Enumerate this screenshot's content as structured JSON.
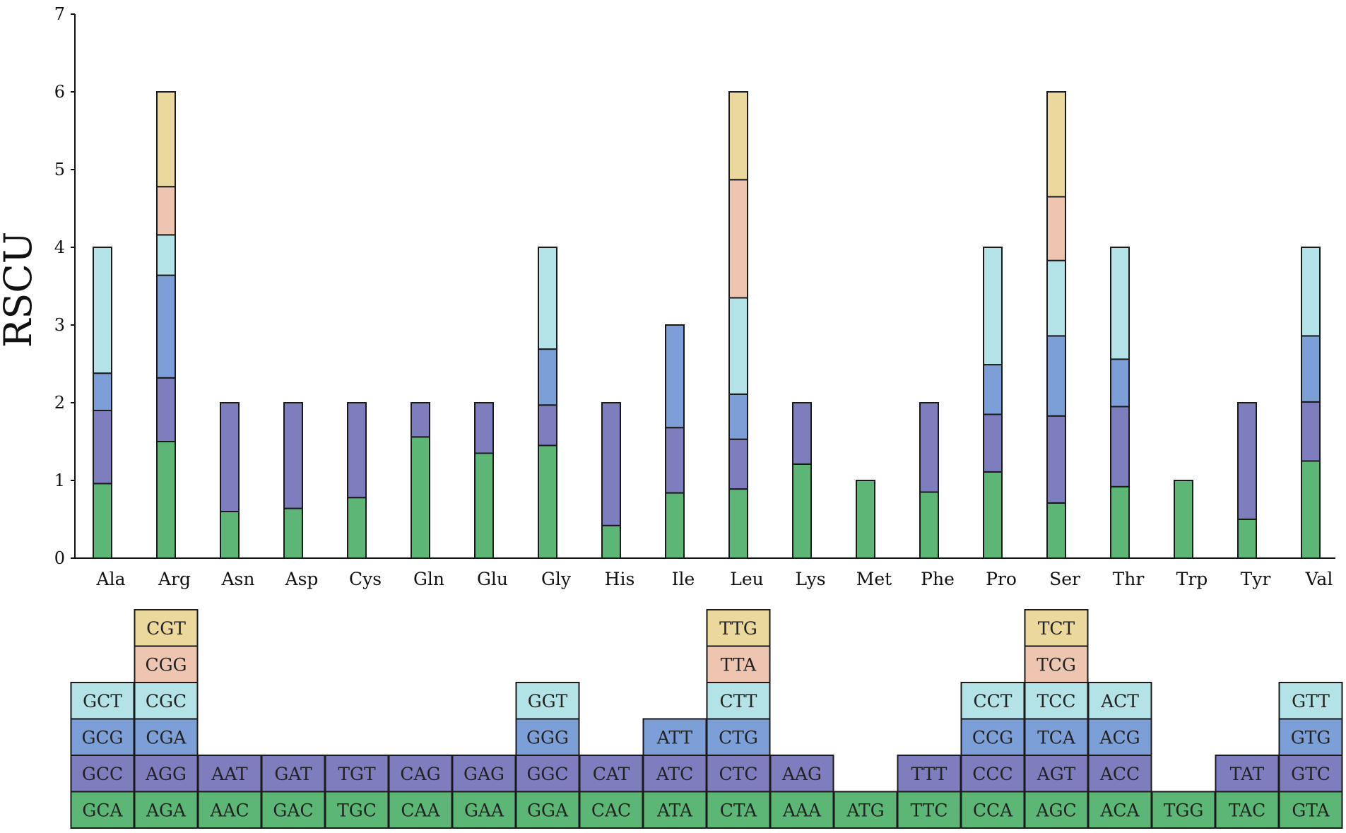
{
  "chart_data": {
    "type": "bar",
    "stacked": true,
    "title": "",
    "xlabel": "",
    "ylabel": "RSCU",
    "ylim": [
      0,
      7
    ],
    "yticks": [
      "0",
      "1",
      "2",
      "3",
      "4",
      "5",
      "6",
      "7"
    ],
    "colors": [
      "#5cb776",
      "#7e7dbd",
      "#7b9fd6",
      "#b3e3e6",
      "#eec5b0",
      "#ead89c"
    ],
    "edge_color": "#1a1a1a",
    "categories": [
      {
        "name": "Ala",
        "segments": [
          {
            "codon": "GCA",
            "value": 0.96
          },
          {
            "codon": "GCC",
            "value": 0.94
          },
          {
            "codon": "GCG",
            "value": 0.48
          },
          {
            "codon": "GCT",
            "value": 1.62
          }
        ]
      },
      {
        "name": "Arg",
        "segments": [
          {
            "codon": "AGA",
            "value": 1.5
          },
          {
            "codon": "AGG",
            "value": 0.82
          },
          {
            "codon": "CGA",
            "value": 1.32
          },
          {
            "codon": "CGC",
            "value": 0.52
          },
          {
            "codon": "CGG",
            "value": 0.62
          },
          {
            "codon": "CGT",
            "value": 1.22
          }
        ]
      },
      {
        "name": "Asn",
        "segments": [
          {
            "codon": "AAC",
            "value": 0.6
          },
          {
            "codon": "AAT",
            "value": 1.4
          }
        ]
      },
      {
        "name": "Asp",
        "segments": [
          {
            "codon": "GAC",
            "value": 0.64
          },
          {
            "codon": "GAT",
            "value": 1.36
          }
        ]
      },
      {
        "name": "Cys",
        "segments": [
          {
            "codon": "TGC",
            "value": 0.78
          },
          {
            "codon": "TGT",
            "value": 1.22
          }
        ]
      },
      {
        "name": "Gln",
        "segments": [
          {
            "codon": "CAA",
            "value": 1.56
          },
          {
            "codon": "CAG",
            "value": 0.44
          }
        ]
      },
      {
        "name": "Glu",
        "segments": [
          {
            "codon": "GAA",
            "value": 1.35
          },
          {
            "codon": "GAG",
            "value": 0.65
          }
        ]
      },
      {
        "name": "Gly",
        "segments": [
          {
            "codon": "GGA",
            "value": 1.45
          },
          {
            "codon": "GGC",
            "value": 0.52
          },
          {
            "codon": "GGG",
            "value": 0.72
          },
          {
            "codon": "GGT",
            "value": 1.31
          }
        ]
      },
      {
        "name": "His",
        "segments": [
          {
            "codon": "CAC",
            "value": 0.42
          },
          {
            "codon": "CAT",
            "value": 1.58
          }
        ]
      },
      {
        "name": "Ile",
        "segments": [
          {
            "codon": "ATA",
            "value": 0.84
          },
          {
            "codon": "ATC",
            "value": 0.84
          },
          {
            "codon": "ATT",
            "value": 1.32
          }
        ]
      },
      {
        "name": "Leu",
        "segments": [
          {
            "codon": "CTA",
            "value": 0.89
          },
          {
            "codon": "CTC",
            "value": 0.64
          },
          {
            "codon": "CTG",
            "value": 0.58
          },
          {
            "codon": "CTT",
            "value": 1.24
          },
          {
            "codon": "TTA",
            "value": 1.52
          },
          {
            "codon": "TTG",
            "value": 1.13
          }
        ]
      },
      {
        "name": "Lys",
        "segments": [
          {
            "codon": "AAA",
            "value": 1.21
          },
          {
            "codon": "AAG",
            "value": 0.79
          }
        ]
      },
      {
        "name": "Met",
        "segments": [
          {
            "codon": "ATG",
            "value": 1.0
          }
        ]
      },
      {
        "name": "Phe",
        "segments": [
          {
            "codon": "TTC",
            "value": 0.85
          },
          {
            "codon": "TTT",
            "value": 1.15
          }
        ]
      },
      {
        "name": "Pro",
        "segments": [
          {
            "codon": "CCA",
            "value": 1.11
          },
          {
            "codon": "CCC",
            "value": 0.74
          },
          {
            "codon": "CCG",
            "value": 0.64
          },
          {
            "codon": "CCT",
            "value": 1.51
          }
        ]
      },
      {
        "name": "Ser",
        "segments": [
          {
            "codon": "AGC",
            "value": 0.71
          },
          {
            "codon": "AGT",
            "value": 1.12
          },
          {
            "codon": "TCA",
            "value": 1.03
          },
          {
            "codon": "TCC",
            "value": 0.97
          },
          {
            "codon": "TCG",
            "value": 0.82
          },
          {
            "codon": "TCT",
            "value": 1.35
          }
        ]
      },
      {
        "name": "Thr",
        "segments": [
          {
            "codon": "ACA",
            "value": 0.92
          },
          {
            "codon": "ACC",
            "value": 1.03
          },
          {
            "codon": "ACG",
            "value": 0.61
          },
          {
            "codon": "ACT",
            "value": 1.44
          }
        ]
      },
      {
        "name": "Trp",
        "segments": [
          {
            "codon": "TGG",
            "value": 1.0
          }
        ]
      },
      {
        "name": "Tyr",
        "segments": [
          {
            "codon": "TAC",
            "value": 0.5
          },
          {
            "codon": "TAT",
            "value": 1.5
          }
        ]
      },
      {
        "name": "Val",
        "segments": [
          {
            "codon": "GTA",
            "value": 1.25
          },
          {
            "codon": "GTC",
            "value": 0.76
          },
          {
            "codon": "GTG",
            "value": 0.85
          },
          {
            "codon": "GTT",
            "value": 1.14
          }
        ]
      }
    ]
  }
}
